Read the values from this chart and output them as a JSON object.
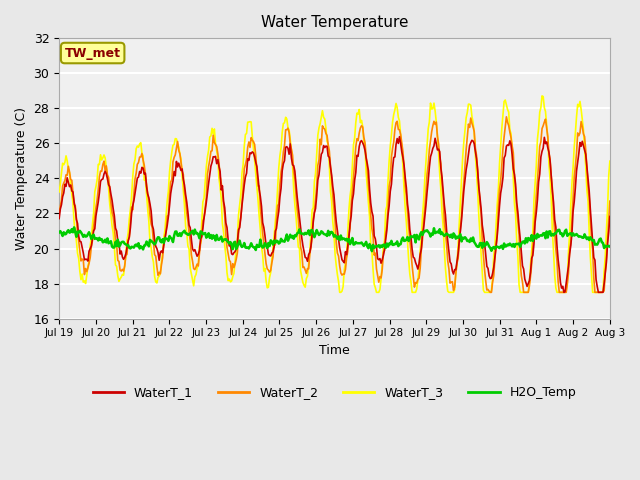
{
  "title": "Water Temperature",
  "xlabel": "Time",
  "ylabel": "Water Temperature (C)",
  "ylim": [
    16,
    32
  ],
  "yticks": [
    16,
    18,
    20,
    22,
    24,
    26,
    28,
    30,
    32
  ],
  "annotation_text": "TW_met",
  "annotation_color": "#8B0000",
  "annotation_bg": "#FFFF99",
  "annotation_border": "#999900",
  "line_colors": {
    "WaterT_1": "#CC0000",
    "WaterT_2": "#FF8800",
    "WaterT_3": "#FFFF00",
    "H2O_Temp": "#00CC00"
  },
  "legend_labels": [
    "WaterT_1",
    "WaterT_2",
    "WaterT_3",
    "H2O_Temp"
  ],
  "xtick_labels": [
    "Jul 19",
    "Jul 20",
    "Jul 21",
    "Jul 22",
    "Jul 23",
    "Jul 24",
    "Jul 25",
    "Jul 26",
    "Jul 27",
    "Jul 28",
    "Jul 29",
    "Jul 30",
    "Jul 31",
    "Aug 1",
    "Aug 2",
    "Aug 3"
  ],
  "bg_color": "#E8E8E8",
  "plot_bg_color": "#F0F0F0",
  "grid_color": "#FFFFFF",
  "n_points": 480,
  "days": 15,
  "seed": 42
}
